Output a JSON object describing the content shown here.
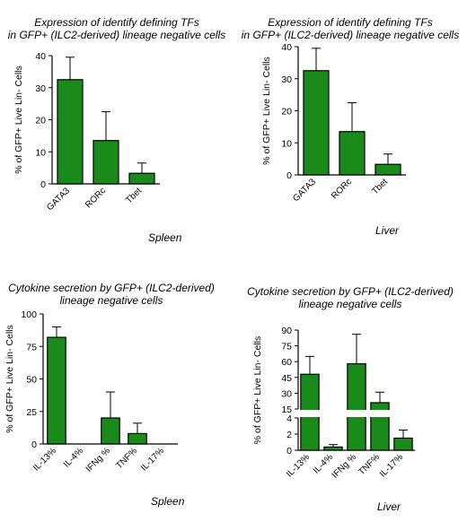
{
  "chart_data": [
    {
      "type": "bar",
      "title": "Expression of identify defining TFs in GFP+ (ILC2-derived) lineage negative cells",
      "title_lines": [
        "Expression of identify defining TFs",
        "in GFP+ (ILC2-derived) lineage negative cells"
      ],
      "ylabel": "% of GFP+ Live Lin- Cells",
      "categories": [
        "GATA3",
        "RORc",
        "Tbet"
      ],
      "values": [
        32.5,
        13.5,
        3.3
      ],
      "errors": [
        7.0,
        9.0,
        3.2
      ],
      "ylim": [
        0,
        40
      ],
      "yticks": [
        0,
        10,
        20,
        30,
        40
      ],
      "tissue": "Spleen",
      "bar_color": "#1a8a1a"
    },
    {
      "type": "bar",
      "title": "Expression of identify defining TFs in GFP+ (ILC2-derived) lineage negative cells",
      "title_lines": [
        "Expression of identify defining TFs",
        "in GFP+ (ILC2-derived) lineage negative cells"
      ],
      "ylabel": "% of GFP+ Live Lin- Cells",
      "categories": [
        "GATA3",
        "RORc",
        "Tbet"
      ],
      "values": [
        32.5,
        13.5,
        3.3
      ],
      "errors": [
        7.0,
        9.0,
        3.2
      ],
      "ylim": [
        0,
        40
      ],
      "yticks": [
        0,
        10,
        20,
        30,
        40
      ],
      "tissue": "Liver",
      "bar_color": "#1a8a1a"
    },
    {
      "type": "bar",
      "title": "Cytokine secretion by GFP+ (ILC2-derived) lineage negative cells",
      "title_lines": [
        "Cytokine secretion by GFP+ (ILC2-derived)",
        "lineage negative cells"
      ],
      "ylabel": "% of GFP+ Live Lin- Cells",
      "categories": [
        "IL-13%",
        "IL-4%",
        "IFNg %",
        "TNF%",
        "IL-17%"
      ],
      "values": [
        82,
        0,
        20,
        8,
        0
      ],
      "errors": [
        8,
        0,
        20,
        8,
        0
      ],
      "ylim": [
        0,
        100
      ],
      "yticks": [
        0,
        25,
        50,
        75,
        100
      ],
      "tissue": "Spleen",
      "bar_color": "#1a8a1a"
    },
    {
      "type": "bar",
      "title": "Cytokine secretion by GFP+ (ILC2-derived) lineage negative cells",
      "title_lines": [
        "Cytokine secretion by GFP+ (ILC2-derived)",
        "lineage negative cells"
      ],
      "ylabel": "% of GFP+ Live Lin- Cells",
      "categories": [
        "IL-13%",
        "IL-4%",
        "IFNg %",
        "TNF%",
        "IL-17%"
      ],
      "values": [
        48,
        0.4,
        58,
        21,
        1.5
      ],
      "errors": [
        17,
        0.3,
        28,
        10,
        1.0
      ],
      "broken_axis": true,
      "lower_ylim": [
        0,
        4
      ],
      "lower_yticks": [
        0,
        2,
        4
      ],
      "upper_ylim": [
        15,
        90
      ],
      "upper_yticks": [
        15,
        30,
        45,
        60,
        75,
        90
      ],
      "tissue": "Liver",
      "bar_color": "#1a8a1a"
    }
  ]
}
